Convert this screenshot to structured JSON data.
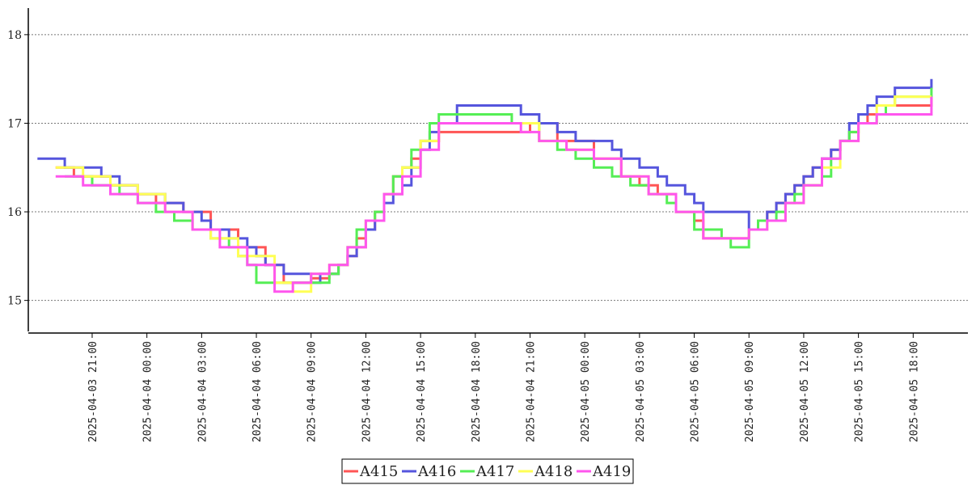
{
  "chart_data": {
    "type": "line",
    "step": true,
    "title": "",
    "xlabel": "",
    "ylabel": "",
    "ylim": [
      14.65,
      18.3
    ],
    "xlim": [
      "2025-04-03 17:30",
      "2025-04-05 21:00"
    ],
    "yticks": [
      15,
      16,
      17,
      18
    ],
    "xticks": [
      "2025-04-03 21:00",
      "2025-04-04 00:00",
      "2025-04-04 03:00",
      "2025-04-04 06:00",
      "2025-04-04 09:00",
      "2025-04-04 12:00",
      "2025-04-04 15:00",
      "2025-04-04 18:00",
      "2025-04-04 21:00",
      "2025-04-05 00:00",
      "2025-04-05 03:00",
      "2025-04-05 06:00",
      "2025-04-05 09:00",
      "2025-04-05 12:00",
      "2025-04-05 15:00",
      "2025-04-05 18:00"
    ],
    "grid": "horizontal-dotted",
    "legend_position": "bottom-center",
    "series": [
      {
        "name": "A415",
        "color": "#ff5555",
        "x": [
          "2025-04-03 19:00",
          "2025-04-03 20:00",
          "2025-04-03 22:00",
          "2025-04-03 23:30",
          "2025-04-04 00:30",
          "2025-04-04 02:00",
          "2025-04-04 03:30",
          "2025-04-04 05:00",
          "2025-04-04 06:30",
          "2025-04-04 07:30",
          "2025-04-04 09:00",
          "2025-04-04 10:00",
          "2025-04-04 10:30",
          "2025-04-04 11:00",
          "2025-04-04 11:30",
          "2025-04-04 12:00",
          "2025-04-04 12:30",
          "2025-04-04 13:00",
          "2025-04-04 13:30",
          "2025-04-04 14:00",
          "2025-04-04 14:30",
          "2025-04-04 15:00",
          "2025-04-04 16:00",
          "2025-04-04 21:00",
          "2025-04-04 22:30",
          "2025-04-05 00:30",
          "2025-04-05 02:00",
          "2025-04-05 03:00",
          "2025-04-05 04:00",
          "2025-04-05 05:00",
          "2025-04-05 06:00",
          "2025-04-05 06:30",
          "2025-04-05 09:00",
          "2025-04-05 09:30",
          "2025-04-05 10:00",
          "2025-04-05 10:30",
          "2025-04-05 11:00",
          "2025-04-05 11:30",
          "2025-04-05 12:00",
          "2025-04-05 12:30",
          "2025-04-05 13:00",
          "2025-04-05 13:30",
          "2025-04-05 14:00",
          "2025-04-05 14:30",
          "2025-04-05 15:00",
          "2025-04-05 15:30",
          "2025-04-05 16:30",
          "2025-04-05 19:00"
        ],
        "y": [
          16.5,
          16.4,
          16.3,
          16.2,
          16.1,
          16.0,
          15.8,
          15.6,
          15.4,
          15.2,
          15.25,
          15.3,
          15.4,
          15.5,
          15.7,
          15.8,
          16.0,
          16.2,
          16.4,
          16.5,
          16.6,
          16.8,
          16.9,
          17.0,
          16.8,
          16.6,
          16.4,
          16.3,
          16.2,
          16.0,
          15.9,
          15.7,
          15.8,
          15.9,
          16.0,
          16.1,
          16.2,
          16.3,
          16.4,
          16.5,
          16.6,
          16.7,
          16.8,
          16.9,
          17.0,
          17.1,
          17.2,
          17.3
        ]
      },
      {
        "name": "A416",
        "color": "#5555dd",
        "x": [
          "2025-04-03 18:00",
          "2025-04-03 19:30",
          "2025-04-03 20:00",
          "2025-04-03 21:30",
          "2025-04-03 22:30",
          "2025-04-03 23:30",
          "2025-04-04 00:00",
          "2025-04-04 01:00",
          "2025-04-04 02:00",
          "2025-04-04 03:00",
          "2025-04-04 03:30",
          "2025-04-04 04:30",
          "2025-04-04 05:30",
          "2025-04-04 06:00",
          "2025-04-04 06:30",
          "2025-04-04 07:30",
          "2025-04-04 08:00",
          "2025-04-04 09:00",
          "2025-04-04 09:30",
          "2025-04-04 10:00",
          "2025-04-04 10:30",
          "2025-04-04 11:00",
          "2025-04-04 11:30",
          "2025-04-04 12:00",
          "2025-04-04 12:30",
          "2025-04-04 13:00",
          "2025-04-04 13:30",
          "2025-04-04 14:00",
          "2025-04-04 14:30",
          "2025-04-04 15:00",
          "2025-04-04 15:30",
          "2025-04-04 16:00",
          "2025-04-04 17:00",
          "2025-04-04 20:30",
          "2025-04-04 21:30",
          "2025-04-04 22:30",
          "2025-04-04 23:30",
          "2025-04-05 00:30",
          "2025-04-05 01:30",
          "2025-04-05 02:00",
          "2025-04-05 03:00",
          "2025-04-05 04:00",
          "2025-04-05 04:30",
          "2025-04-05 05:30",
          "2025-04-05 06:00",
          "2025-04-05 06:30",
          "2025-04-05 09:00",
          "2025-04-05 09:30",
          "2025-04-05 10:00",
          "2025-04-05 10:30",
          "2025-04-05 11:00",
          "2025-04-05 11:30",
          "2025-04-05 12:00",
          "2025-04-05 12:30",
          "2025-04-05 13:00",
          "2025-04-05 13:30",
          "2025-04-05 14:00",
          "2025-04-05 14:30",
          "2025-04-05 15:00",
          "2025-04-05 15:30",
          "2025-04-05 16:00",
          "2025-04-05 17:00",
          "2025-04-05 19:00"
        ],
        "y": [
          16.6,
          16.5,
          16.5,
          16.4,
          16.3,
          16.2,
          16.2,
          16.1,
          16.0,
          15.9,
          15.8,
          15.7,
          15.6,
          15.5,
          15.4,
          15.3,
          15.3,
          15.2,
          15.3,
          15.3,
          15.4,
          15.5,
          15.6,
          15.8,
          15.9,
          16.1,
          16.2,
          16.3,
          16.5,
          16.7,
          16.9,
          17.0,
          17.2,
          17.1,
          17.0,
          16.9,
          16.8,
          16.8,
          16.7,
          16.6,
          16.5,
          16.4,
          16.3,
          16.2,
          16.1,
          16.0,
          15.8,
          15.9,
          16.0,
          16.1,
          16.2,
          16.3,
          16.4,
          16.5,
          16.6,
          16.7,
          16.8,
          17.0,
          17.1,
          17.2,
          17.3,
          17.4,
          17.5
        ]
      },
      {
        "name": "A417",
        "color": "#55ee55",
        "x": [
          "2025-04-03 19:30",
          "2025-04-03 21:00",
          "2025-04-03 22:30",
          "2025-04-03 23:30",
          "2025-04-04 00:30",
          "2025-04-04 01:30",
          "2025-04-04 02:30",
          "2025-04-04 03:30",
          "2025-04-04 04:30",
          "2025-04-04 05:00",
          "2025-04-04 05:30",
          "2025-04-04 06:00",
          "2025-04-04 10:00",
          "2025-04-04 10:30",
          "2025-04-04 11:00",
          "2025-04-04 11:30",
          "2025-04-04 12:00",
          "2025-04-04 12:30",
          "2025-04-04 13:00",
          "2025-04-04 13:30",
          "2025-04-04 14:00",
          "2025-04-04 14:30",
          "2025-04-04 15:00",
          "2025-04-04 15:30",
          "2025-04-04 16:00",
          "2025-04-04 20:00",
          "2025-04-04 21:30",
          "2025-04-04 22:30",
          "2025-04-04 23:30",
          "2025-04-05 00:30",
          "2025-04-05 01:30",
          "2025-04-05 02:30",
          "2025-04-05 03:30",
          "2025-04-05 04:30",
          "2025-04-05 05:00",
          "2025-04-05 06:00",
          "2025-04-05 07:30",
          "2025-04-05 08:00",
          "2025-04-05 09:00",
          "2025-04-05 09:30",
          "2025-04-05 10:30",
          "2025-04-05 11:00",
          "2025-04-05 11:30",
          "2025-04-05 12:00",
          "2025-04-05 13:00",
          "2025-04-05 13:30",
          "2025-04-05 14:00",
          "2025-04-05 14:30",
          "2025-04-05 15:00",
          "2025-04-05 16:00",
          "2025-04-05 16:30",
          "2025-04-05 17:00",
          "2025-04-05 19:00"
        ],
        "y": [
          16.4,
          16.3,
          16.2,
          16.1,
          16.0,
          15.9,
          15.8,
          15.7,
          15.6,
          15.5,
          15.4,
          15.2,
          15.3,
          15.4,
          15.6,
          15.8,
          15.9,
          16.0,
          16.2,
          16.4,
          16.5,
          16.7,
          16.8,
          17.0,
          17.1,
          17.0,
          16.8,
          16.7,
          16.6,
          16.5,
          16.4,
          16.3,
          16.2,
          16.1,
          16.0,
          15.8,
          15.7,
          15.6,
          15.8,
          15.9,
          16.0,
          16.1,
          16.2,
          16.3,
          16.4,
          16.6,
          16.8,
          16.9,
          17.0,
          17.1,
          17.2,
          17.3,
          17.4
        ]
      },
      {
        "name": "A418",
        "color": "#ffff55",
        "x": [
          "2025-04-03 19:00",
          "2025-04-03 20:30",
          "2025-04-03 22:00",
          "2025-04-03 23:30",
          "2025-04-04 01:00",
          "2025-04-04 02:30",
          "2025-04-04 03:30",
          "2025-04-04 05:00",
          "2025-04-04 07:00",
          "2025-04-04 08:00",
          "2025-04-04 09:00",
          "2025-04-04 10:00",
          "2025-04-04 11:00",
          "2025-04-04 12:00",
          "2025-04-04 13:00",
          "2025-04-04 14:00",
          "2025-04-04 15:00",
          "2025-04-04 16:00",
          "2025-04-04 20:00",
          "2025-04-04 21:30",
          "2025-04-04 23:00",
          "2025-04-05 00:30",
          "2025-04-05 02:00",
          "2025-04-05 03:30",
          "2025-04-05 05:00",
          "2025-04-05 06:30",
          "2025-04-05 09:00",
          "2025-04-05 10:00",
          "2025-04-05 11:00",
          "2025-04-05 12:00",
          "2025-04-05 13:00",
          "2025-04-05 14:00",
          "2025-04-05 15:00",
          "2025-04-05 16:00",
          "2025-04-05 17:00",
          "2025-04-05 19:00"
        ],
        "y": [
          16.5,
          16.4,
          16.3,
          16.2,
          16.0,
          15.8,
          15.7,
          15.5,
          15.2,
          15.1,
          15.3,
          15.4,
          15.6,
          15.9,
          16.2,
          16.5,
          16.8,
          17.0,
          17.0,
          16.8,
          16.7,
          16.6,
          16.4,
          16.2,
          16.0,
          15.7,
          15.8,
          15.9,
          16.1,
          16.3,
          16.5,
          16.8,
          17.0,
          17.2,
          17.3,
          17.3
        ]
      },
      {
        "name": "A419",
        "color": "#ff55ee",
        "x": [
          "2025-04-03 19:00",
          "2025-04-03 20:30",
          "2025-04-03 22:00",
          "2025-04-03 23:30",
          "2025-04-04 01:00",
          "2025-04-04 02:30",
          "2025-04-04 04:00",
          "2025-04-04 05:30",
          "2025-04-04 07:00",
          "2025-04-04 08:00",
          "2025-04-04 09:00",
          "2025-04-04 10:00",
          "2025-04-04 11:00",
          "2025-04-04 12:00",
          "2025-04-04 13:00",
          "2025-04-04 14:00",
          "2025-04-04 15:00",
          "2025-04-04 16:00",
          "2025-04-04 20:30",
          "2025-04-04 21:30",
          "2025-04-04 23:00",
          "2025-04-05 00:30",
          "2025-04-05 02:00",
          "2025-04-05 03:30",
          "2025-04-05 05:00",
          "2025-04-05 06:30",
          "2025-04-05 09:00",
          "2025-04-05 10:00",
          "2025-04-05 11:00",
          "2025-04-05 12:00",
          "2025-04-05 13:00",
          "2025-04-05 14:00",
          "2025-04-05 15:00",
          "2025-04-05 16:00",
          "2025-04-05 19:00"
        ],
        "y": [
          16.4,
          16.3,
          16.2,
          16.1,
          16.0,
          15.8,
          15.6,
          15.4,
          15.1,
          15.2,
          15.3,
          15.4,
          15.6,
          15.9,
          16.2,
          16.4,
          16.7,
          17.0,
          16.9,
          16.8,
          16.7,
          16.6,
          16.4,
          16.2,
          16.0,
          15.7,
          15.8,
          15.9,
          16.1,
          16.3,
          16.6,
          16.8,
          17.0,
          17.1,
          17.3
        ]
      }
    ]
  }
}
